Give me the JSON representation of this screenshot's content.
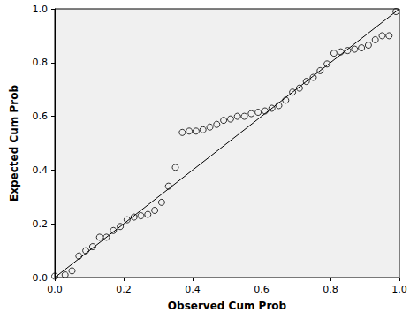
{
  "chart_data": {
    "type": "scatter",
    "xlabel": "Observed Cum Prob",
    "ylabel": "Expected Cum Prob",
    "x": [
      0.0,
      0.03,
      0.05,
      0.07,
      0.09,
      0.11,
      0.13,
      0.15,
      0.17,
      0.19,
      0.21,
      0.23,
      0.25,
      0.27,
      0.29,
      0.31,
      0.33,
      0.35,
      0.37,
      0.39,
      0.41,
      0.43,
      0.45,
      0.47,
      0.49,
      0.51,
      0.53,
      0.55,
      0.57,
      0.59,
      0.61,
      0.63,
      0.65,
      0.67,
      0.69,
      0.71,
      0.73,
      0.75,
      0.77,
      0.79,
      0.81,
      0.83,
      0.85,
      0.87,
      0.89,
      0.91,
      0.93,
      0.95,
      0.97,
      0.99
    ],
    "values": [
      0.005,
      0.01,
      0.025,
      0.08,
      0.1,
      0.115,
      0.15,
      0.15,
      0.175,
      0.19,
      0.215,
      0.225,
      0.23,
      0.235,
      0.25,
      0.28,
      0.34,
      0.41,
      0.54,
      0.545,
      0.545,
      0.55,
      0.56,
      0.57,
      0.585,
      0.59,
      0.6,
      0.6,
      0.61,
      0.615,
      0.62,
      0.63,
      0.64,
      0.66,
      0.69,
      0.705,
      0.73,
      0.745,
      0.77,
      0.795,
      0.835,
      0.84,
      0.845,
      0.85,
      0.855,
      0.865,
      0.885,
      0.9,
      0.9,
      0.99
    ],
    "reference_line": {
      "x": [
        0,
        1
      ],
      "y": [
        0,
        1
      ]
    },
    "color": "#000000",
    "marker": "circle",
    "xlim": [
      0,
      1
    ],
    "ylim": [
      0,
      1
    ],
    "xticks": [
      {
        "value": 0,
        "label": "0.0"
      },
      0.2,
      0.4,
      0.6,
      0.8,
      {
        "value": 1,
        "label": "1.0"
      }
    ],
    "yticks": [
      {
        "value": 0,
        "label": "0.0"
      },
      0.2,
      0.4,
      0.6,
      0.8,
      {
        "value": 1,
        "label": "1.0"
      }
    ],
    "grid": false
  }
}
